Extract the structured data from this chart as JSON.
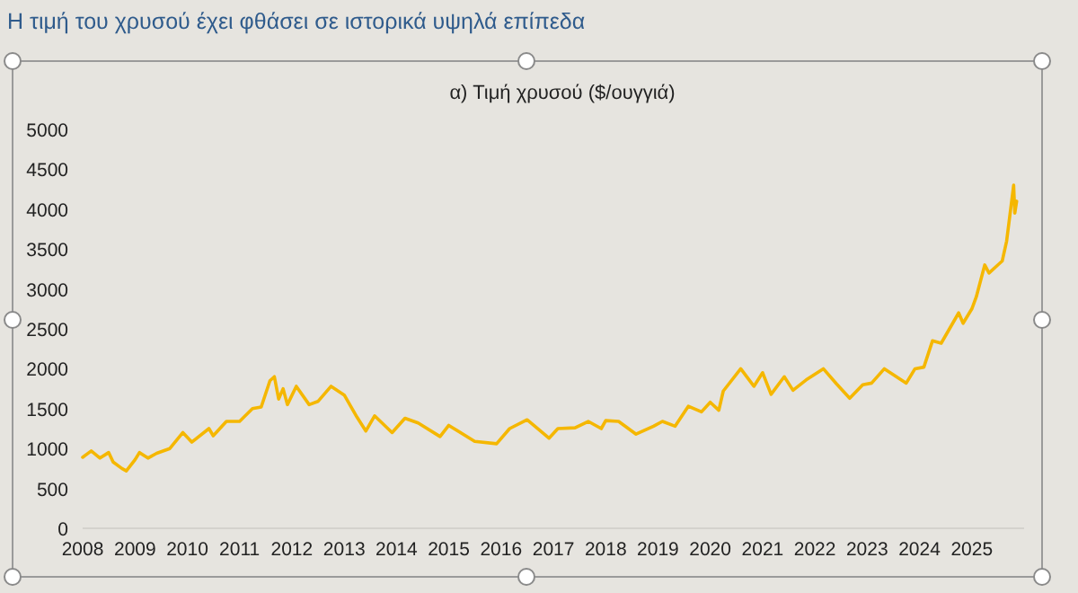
{
  "chart_data": {
    "type": "line",
    "title": "α) Τιμή χρυσού ($/ουγγιά)",
    "annotations": [
      "Η τιμή του χρυσού έχει φθάσει σε ιστορικά υψηλά επίπεδα"
    ],
    "x": [
      "2008-01",
      "2008-03",
      "2008-05",
      "2008-07",
      "2008-08",
      "2008-10",
      "2008-11",
      "2009-01",
      "2009-02",
      "2009-04",
      "2009-06",
      "2009-09",
      "2009-12",
      "2010-02",
      "2010-06",
      "2010-07",
      "2010-10",
      "2011-01",
      "2011-04",
      "2011-06",
      "2011-08",
      "2011-09",
      "2011-10",
      "2011-11",
      "2011-12",
      "2012-02",
      "2012-05",
      "2012-07",
      "2012-10",
      "2013-01",
      "2013-04",
      "2013-06",
      "2013-08",
      "2013-12",
      "2014-03",
      "2014-06",
      "2014-11",
      "2015-01",
      "2015-07",
      "2015-12",
      "2016-03",
      "2016-07",
      "2016-12",
      "2017-02",
      "2017-06",
      "2017-09",
      "2017-12",
      "2018-01",
      "2018-04",
      "2018-08",
      "2018-12",
      "2019-02",
      "2019-05",
      "2019-08",
      "2019-11",
      "2020-01",
      "2020-03",
      "2020-04",
      "2020-08",
      "2020-11",
      "2021-01",
      "2021-03",
      "2021-06",
      "2021-08",
      "2021-11",
      "2022-03",
      "2022-06",
      "2022-09",
      "2022-12",
      "2023-02",
      "2023-05",
      "2023-10",
      "2023-12",
      "2024-02",
      "2024-04",
      "2024-06",
      "2024-10",
      "2024-11",
      "2025-01",
      "2025-02",
      "2025-04",
      "2025-05",
      "2025-07",
      "2025-08",
      "2025-09",
      "2025-10-20",
      "2025-10-28",
      "2025-11-10"
    ],
    "series": [
      {
        "color": "#f5b700",
        "values": [
          890,
          970,
          880,
          950,
          830,
          750,
          720,
          860,
          950,
          880,
          940,
          1000,
          1200,
          1080,
          1250,
          1160,
          1340,
          1340,
          1500,
          1520,
          1850,
          1900,
          1620,
          1750,
          1550,
          1780,
          1550,
          1590,
          1780,
          1670,
          1390,
          1220,
          1410,
          1200,
          1380,
          1320,
          1150,
          1290,
          1090,
          1060,
          1250,
          1360,
          1130,
          1250,
          1260,
          1340,
          1250,
          1350,
          1340,
          1180,
          1280,
          1340,
          1280,
          1530,
          1460,
          1580,
          1480,
          1720,
          2000,
          1780,
          1950,
          1680,
          1900,
          1730,
          1860,
          2000,
          1810,
          1630,
          1800,
          1820,
          2000,
          1820,
          2000,
          2020,
          2350,
          2320,
          2700,
          2570,
          2750,
          2900,
          3300,
          3200,
          3300,
          3350,
          3600,
          4300,
          3950,
          4100
        ]
      }
    ],
    "xlim": [
      "2008-01-01",
      "2026-01-01"
    ],
    "xticks": [
      {
        "value": "2008-01-01",
        "label": "2008"
      },
      {
        "value": "2009-01-01",
        "label": "2009"
      },
      {
        "value": "2010-01-01",
        "label": "2010"
      },
      {
        "value": "2011-01-01",
        "label": "2011"
      },
      {
        "value": "2012-01-01",
        "label": "2012"
      },
      {
        "value": "2013-01-01",
        "label": "2013"
      },
      {
        "value": "2014-01-01",
        "label": "2014"
      },
      {
        "value": "2015-01-01",
        "label": "2015"
      },
      {
        "value": "2016-01-01",
        "label": "2016"
      },
      {
        "value": "2017-01-01",
        "label": "2017"
      },
      {
        "value": "2018-01-01",
        "label": "2018"
      },
      {
        "value": "2019-01-01",
        "label": "2019"
      },
      {
        "value": "2020-01-01",
        "label": "2020"
      },
      {
        "value": "2021-01-01",
        "label": "2021"
      },
      {
        "value": "2022-01-01",
        "label": "2022"
      },
      {
        "value": "2023-01-01",
        "label": "2023"
      },
      {
        "value": "2024-01-01",
        "label": "2024"
      },
      {
        "value": "2025-01-01",
        "label": "2025"
      }
    ],
    "ylim": [
      0,
      5000
    ],
    "yticks": [
      0,
      500,
      1000,
      1500,
      2000,
      2500,
      3000,
      3500,
      4000,
      4500,
      5000
    ],
    "grid": false
  }
}
